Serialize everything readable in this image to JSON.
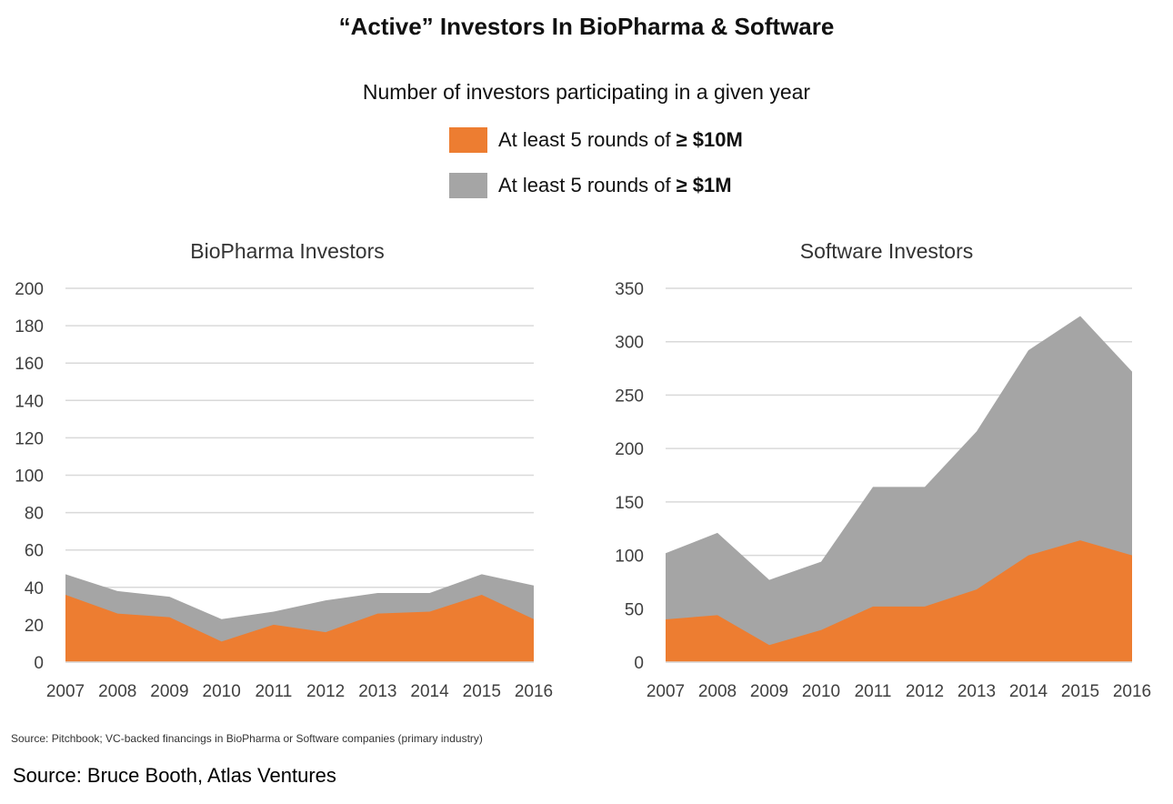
{
  "title": "“Active” Investors In BioPharma & Software",
  "subtitle": "Number of investors participating in a given year",
  "legend": [
    {
      "pre": "At least 5 rounds of",
      "bold": "≥ $10M",
      "color": "#ED7D31"
    },
    {
      "pre": "At least 5 rounds of",
      "bold": "≥ $1M",
      "color": "#A5A5A5"
    }
  ],
  "source_note": "Source: Pitchbook; VC-backed financings in BioPharma or Software companies (primary industry)",
  "source_credit": "Source: Bruce Booth, Atlas Ventures",
  "chart_data": [
    {
      "type": "area",
      "title": "BioPharma Investors",
      "x": [
        "2007",
        "2008",
        "2009",
        "2010",
        "2011",
        "2012",
        "2013",
        "2014",
        "2015",
        "2016"
      ],
      "ylim": [
        0,
        200
      ],
      "yticks": [
        0,
        20,
        40,
        60,
        80,
        100,
        120,
        140,
        160,
        180,
        200
      ],
      "series": [
        {
          "name": "At least 5 rounds of ≥ $1M",
          "color": "#A5A5A5",
          "values": [
            47,
            38,
            35,
            23,
            27,
            33,
            37,
            37,
            47,
            41
          ]
        },
        {
          "name": "At least 5 rounds of ≥ $10M",
          "color": "#ED7D31",
          "values": [
            36,
            26,
            24,
            11,
            20,
            16,
            26,
            27,
            36,
            23
          ]
        }
      ],
      "grid": true
    },
    {
      "type": "area",
      "title": "Software Investors",
      "x": [
        "2007",
        "2008",
        "2009",
        "2010",
        "2011",
        "2012",
        "2013",
        "2014",
        "2015",
        "2016"
      ],
      "ylim": [
        0,
        350
      ],
      "yticks": [
        0,
        50,
        100,
        150,
        200,
        250,
        300,
        350
      ],
      "series": [
        {
          "name": "At least 5 rounds of ≥ $1M",
          "color": "#A5A5A5",
          "values": [
            102,
            121,
            77,
            94,
            164,
            164,
            216,
            292,
            324,
            272
          ]
        },
        {
          "name": "At least 5 rounds of ≥ $10M",
          "color": "#ED7D31",
          "values": [
            40,
            44,
            16,
            30,
            52,
            52,
            68,
            100,
            114,
            100
          ]
        }
      ],
      "grid": true
    }
  ]
}
